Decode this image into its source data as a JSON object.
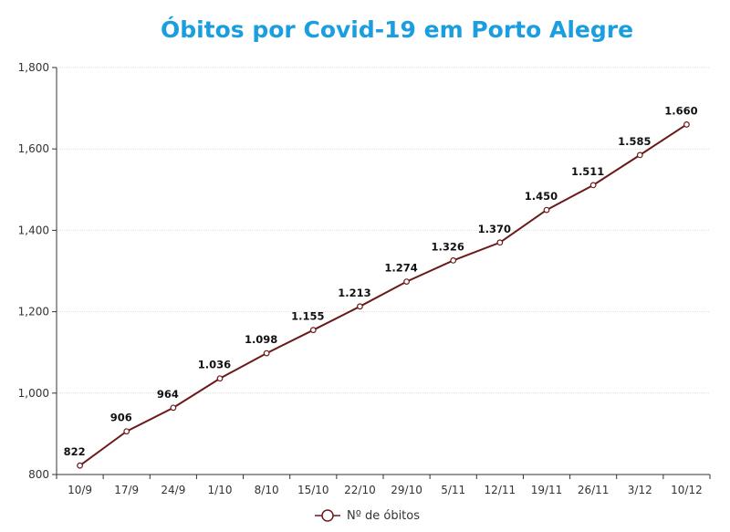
{
  "chart_data": {
    "type": "line",
    "title": "Óbitos por Covid-19 em Porto Alegre",
    "categories": [
      "10/9",
      "17/9",
      "24/9",
      "1/10",
      "8/10",
      "15/10",
      "22/10",
      "29/10",
      "5/11",
      "12/11",
      "19/11",
      "26/11",
      "3/12",
      "10/12"
    ],
    "series": [
      {
        "name": "Nº de óbitos",
        "values": [
          822,
          906,
          964,
          1036,
          1098,
          1155,
          1213,
          1274,
          1326,
          1370,
          1450,
          1511,
          1585,
          1660
        ],
        "data_labels": [
          "822",
          "906",
          "964",
          "1.036",
          "1.098",
          "1.155",
          "1.213",
          "1.274",
          "1.326",
          "1.370",
          "1.450",
          "1.511",
          "1.585",
          "1.660"
        ],
        "color": "#6b1a1a"
      }
    ],
    "ylim": [
      800,
      1800
    ],
    "yticks": [
      800,
      1000,
      1200,
      1400,
      1600,
      1800
    ],
    "ytick_labels": [
      "800",
      "1,000",
      "1,200",
      "1,400",
      "1,600",
      "1,800"
    ],
    "grid": "horizontal",
    "legend_position": "bottom-center",
    "title_color": "#1a9ee0"
  }
}
